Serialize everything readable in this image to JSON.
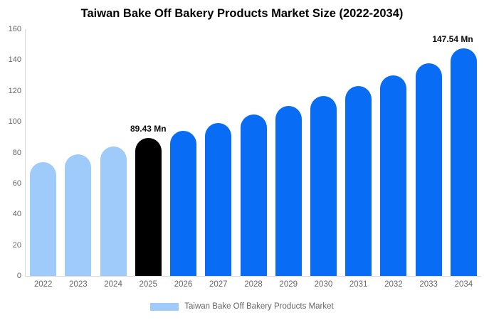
{
  "title": "Taiwan Bake Off Bakery Products Market Size (2022-2034)",
  "colors": {
    "light_blue": "#9ECBF9",
    "bright_blue": "#086CF5",
    "highlight_black": "#000000",
    "axis_line": "#d9d9d9",
    "tick_text": "#666666",
    "data_label_text": "#0b0b0b",
    "background": "#ffffff"
  },
  "legend": {
    "label": "Taiwan Bake Off Bakery Products Market",
    "swatch_color": "#9ECBF9"
  },
  "chart_data": {
    "type": "bar",
    "title": "Taiwan Bake Off Bakery Products Market Size (2022-2034)",
    "categories": [
      "2022",
      "2023",
      "2024",
      "2025",
      "2026",
      "2027",
      "2028",
      "2029",
      "2030",
      "2031",
      "2032",
      "2033",
      "2034"
    ],
    "values": [
      74,
      79,
      84,
      89.43,
      94,
      99,
      104.5,
      110,
      116.5,
      123,
      130,
      138,
      147.54
    ],
    "bar_colors": [
      "#9ECBF9",
      "#9ECBF9",
      "#9ECBF9",
      "#000000",
      "#086CF5",
      "#086CF5",
      "#086CF5",
      "#086CF5",
      "#086CF5",
      "#086CF5",
      "#086CF5",
      "#086CF5",
      "#086CF5"
    ],
    "data_labels": [
      {
        "index": 3,
        "text": "89.43 Mn"
      },
      {
        "index": 12,
        "text": "147.54 Mn"
      }
    ],
    "xlabel": "",
    "ylabel": "",
    "ylim": [
      0,
      160
    ],
    "yticks": [
      0,
      20,
      40,
      60,
      80,
      100,
      120,
      140,
      160
    ],
    "grid": false,
    "legend_position": "bottom",
    "bar_corner": "rounded-top"
  }
}
